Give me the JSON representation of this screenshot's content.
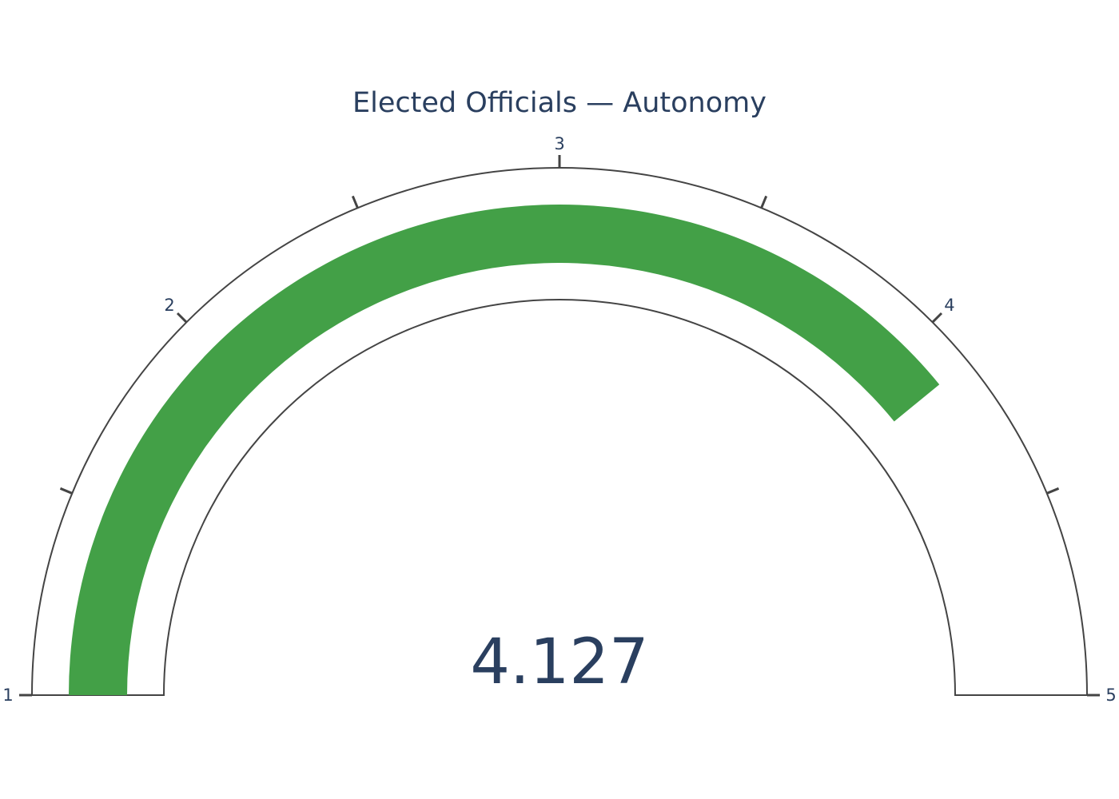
{
  "chart_data": {
    "type": "gauge",
    "title": "Elected Officials — Autonomy",
    "value": 4.127,
    "value_text": "4.127",
    "range": [
      1,
      5
    ],
    "tick_values": [
      1,
      2,
      3,
      4,
      5
    ],
    "tick_labels": [
      "1",
      "2",
      "3",
      "4",
      "5"
    ],
    "minor_tick_values": [
      1.5,
      2.5,
      3.5,
      4.5
    ],
    "bar_color": "#43a047",
    "outline_color": "#444444",
    "text_color": "#2a3f5f"
  }
}
